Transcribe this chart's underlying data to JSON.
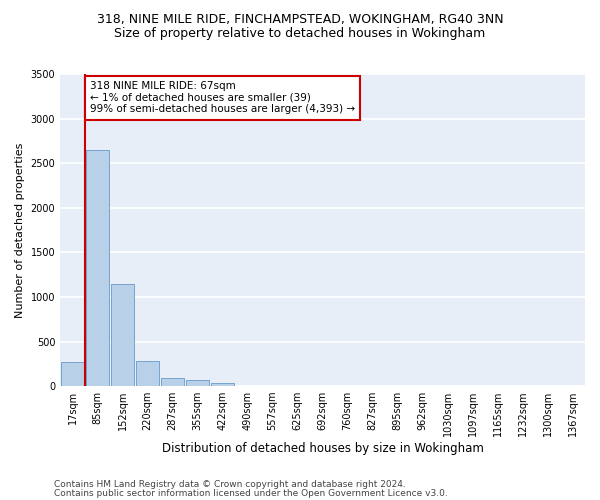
{
  "title1": "318, NINE MILE RIDE, FINCHAMPSTEAD, WOKINGHAM, RG40 3NN",
  "title2": "Size of property relative to detached houses in Wokingham",
  "xlabel": "Distribution of detached houses by size in Wokingham",
  "ylabel": "Number of detached properties",
  "bar_labels": [
    "17sqm",
    "85sqm",
    "152sqm",
    "220sqm",
    "287sqm",
    "355sqm",
    "422sqm",
    "490sqm",
    "557sqm",
    "625sqm",
    "692sqm",
    "760sqm",
    "827sqm",
    "895sqm",
    "962sqm",
    "1030sqm",
    "1097sqm",
    "1165sqm",
    "1232sqm",
    "1300sqm",
    "1367sqm"
  ],
  "bar_values": [
    270,
    2650,
    1150,
    285,
    95,
    65,
    40,
    0,
    0,
    0,
    0,
    0,
    0,
    0,
    0,
    0,
    0,
    0,
    0,
    0,
    0
  ],
  "bar_color": "#b8d0e8",
  "bar_edge_color": "#6699cc",
  "bg_color": "#e8eef8",
  "grid_color": "#ffffff",
  "annotation_text_line1": "318 NINE MILE RIDE: 67sqm",
  "annotation_text_line2": "← 1% of detached houses are smaller (39)",
  "annotation_text_line3": "99% of semi-detached houses are larger (4,393) →",
  "red_line_color": "#cc0000",
  "annotation_box_color": "#ffffff",
  "annotation_box_edge": "#cc0000",
  "ylim": [
    0,
    3500
  ],
  "yticks": [
    0,
    500,
    1000,
    1500,
    2000,
    2500,
    3000,
    3500
  ],
  "footer1": "Contains HM Land Registry data © Crown copyright and database right 2024.",
  "footer2": "Contains public sector information licensed under the Open Government Licence v3.0.",
  "title1_fontsize": 9,
  "title2_fontsize": 9,
  "xlabel_fontsize": 8.5,
  "ylabel_fontsize": 8,
  "tick_fontsize": 7,
  "footer_fontsize": 6.5
}
